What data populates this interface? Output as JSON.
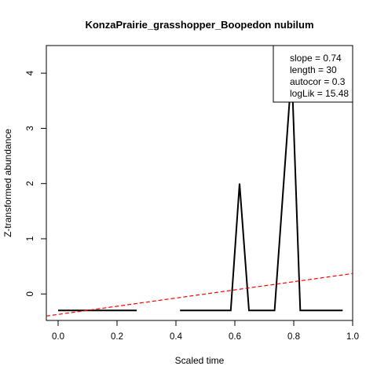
{
  "chart_data": {
    "type": "line",
    "title": "KonzaPrairie_grasshopper_Boopedon nubilum",
    "xlabel": "Scaled time",
    "ylabel": "Z-transformed abundance",
    "xlim": [
      -0.04,
      1.0
    ],
    "ylim": [
      -0.48,
      4.5
    ],
    "xticks": [
      0.0,
      0.2,
      0.4,
      0.6,
      0.8,
      1.0
    ],
    "xtick_labels": [
      "0.0",
      "0.2",
      "0.4",
      "0.6",
      "0.8",
      "1.0"
    ],
    "yticks": [
      0,
      1,
      2,
      3,
      4
    ],
    "ytick_labels": [
      "0",
      "1",
      "2",
      "3",
      "4"
    ],
    "grid": false,
    "legend_position": "top-right",
    "legend_lines": [
      "slope = 0.74",
      "length = 30",
      "autocor = 0.3",
      "logLik = 15.48"
    ],
    "series": [
      {
        "color": "#000000",
        "segments": [
          {
            "x": [
              0.0,
              0.034,
              0.069,
              0.103,
              0.138,
              0.172,
              0.207,
              0.241,
              0.267
            ],
            "y": [
              -0.3,
              -0.3,
              -0.3,
              -0.3,
              -0.3,
              -0.3,
              -0.3,
              -0.3,
              -0.3
            ]
          },
          {
            "x": [
              0.414,
              0.448,
              0.483,
              0.517,
              0.552,
              0.586,
              0.616,
              0.648,
              0.679,
              0.71,
              0.735,
              0.793,
              0.822,
              0.855,
              0.89,
              0.925,
              0.966
            ],
            "y": [
              -0.3,
              -0.3,
              -0.3,
              -0.3,
              -0.3,
              -0.3,
              2.0,
              -0.3,
              -0.3,
              -0.3,
              -0.3,
              4.05,
              -0.3,
              -0.3,
              -0.3,
              -0.3,
              -0.3
            ]
          }
        ]
      },
      {
        "color": "#ff0000",
        "dashed": true,
        "x": [
          -0.04,
          1.0
        ],
        "y": [
          -0.4,
          0.37
        ]
      }
    ]
  }
}
